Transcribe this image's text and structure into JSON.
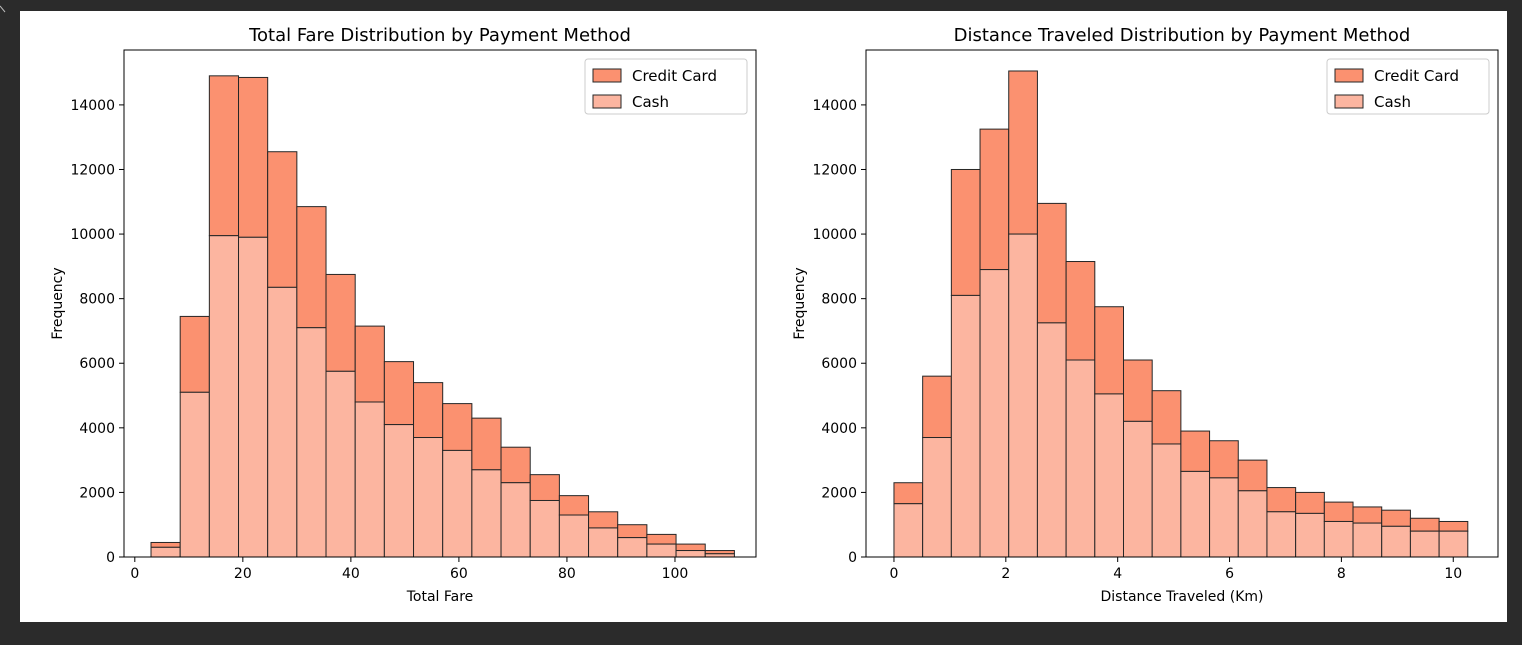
{
  "chart_data": [
    {
      "type": "bar",
      "stacked": true,
      "title": "Total Fare Distribution by Payment Method",
      "xlabel": "Total Fare",
      "ylabel": "Frequency",
      "xlim": [
        -2,
        115
      ],
      "ylim": [
        0,
        15700
      ],
      "xticks": [
        0,
        20,
        40,
        60,
        80,
        100
      ],
      "yticks": [
        0,
        2000,
        4000,
        6000,
        8000,
        10000,
        12000,
        14000
      ],
      "bin_edges": [
        3,
        8.4,
        13.8,
        19.2,
        24.6,
        30,
        35.4,
        40.8,
        46.2,
        51.6,
        57,
        62.4,
        67.8,
        73.2,
        78.6,
        84,
        89.4,
        94.8,
        100.2,
        105.6,
        111
      ],
      "legend_position": "top-right",
      "grid": false,
      "series": [
        {
          "name": "Cash",
          "color": "#fcb5a0",
          "values": [
            300,
            5100,
            9950,
            9900,
            8350,
            7100,
            5750,
            4800,
            4100,
            3700,
            3300,
            2700,
            2300,
            1750,
            1300,
            900,
            600,
            400,
            200,
            100
          ]
        },
        {
          "name": "Credit Card",
          "color": "#fb9170",
          "values": [
            150,
            2350,
            4950,
            4950,
            4200,
            3750,
            3000,
            2350,
            1950,
            1700,
            1450,
            1600,
            1100,
            800,
            600,
            500,
            400,
            300,
            200,
            100
          ]
        }
      ]
    },
    {
      "type": "bar",
      "stacked": true,
      "title": "Distance Traveled Distribution by Payment Method",
      "xlabel": "Distance Traveled (Km)",
      "ylabel": "Frequency",
      "xlim": [
        -0.5,
        10.8
      ],
      "ylim": [
        0,
        15700
      ],
      "xticks": [
        0,
        2,
        4,
        6,
        8,
        10
      ],
      "yticks": [
        0,
        2000,
        4000,
        6000,
        8000,
        10000,
        12000,
        14000
      ],
      "bin_edges": [
        0.0,
        0.513,
        1.026,
        1.539,
        2.052,
        2.565,
        3.078,
        3.591,
        4.104,
        4.617,
        5.13,
        5.643,
        6.156,
        6.669,
        7.182,
        7.695,
        8.208,
        8.721,
        9.234,
        9.747,
        10.26
      ],
      "legend_position": "top-right",
      "grid": false,
      "series": [
        {
          "name": "Cash",
          "color": "#fcb5a0",
          "values": [
            1650,
            3700,
            8100,
            8900,
            10000,
            7250,
            6100,
            5050,
            4200,
            3500,
            2650,
            2450,
            2050,
            1400,
            1350,
            1100,
            1050,
            950,
            800,
            800
          ]
        },
        {
          "name": "Credit Card",
          "color": "#fb9170",
          "values": [
            650,
            1900,
            3900,
            4350,
            5050,
            3700,
            3050,
            2700,
            1900,
            1650,
            1250,
            1150,
            950,
            750,
            650,
            600,
            500,
            500,
            400,
            300
          ]
        }
      ]
    }
  ]
}
